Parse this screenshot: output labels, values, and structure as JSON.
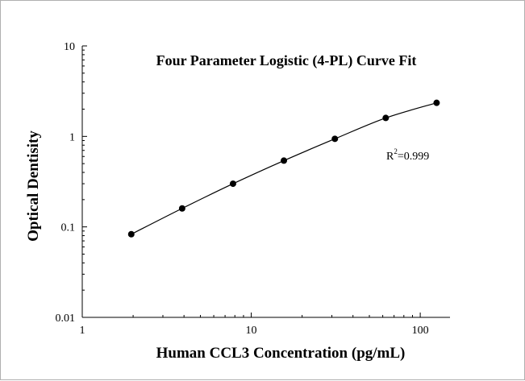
{
  "chart_data": {
    "type": "scatter",
    "title": "Four Parameter Logistic (4-PL) Curve Fit",
    "xlabel": "Human CCL3 Concentration (pg/mL)",
    "ylabel": "Optical Dentisity",
    "x_scale": "log",
    "y_scale": "log",
    "xlim": [
      1,
      150
    ],
    "ylim": [
      0.01,
      10
    ],
    "x_ticks": [
      {
        "value": 1,
        "label": "1"
      },
      {
        "value": 10,
        "label": "10"
      },
      {
        "value": 100,
        "label": "100"
      }
    ],
    "y_ticks": [
      {
        "value": 0.01,
        "label": "0.01"
      },
      {
        "value": 0.1,
        "label": "0.1"
      },
      {
        "value": 1,
        "label": "1"
      },
      {
        "value": 10,
        "label": "10"
      }
    ],
    "series": [
      {
        "points": [
          {
            "x": 1.95,
            "y": 0.083
          },
          {
            "x": 3.9,
            "y": 0.16
          },
          {
            "x": 7.8,
            "y": 0.3
          },
          {
            "x": 15.6,
            "y": 0.54
          },
          {
            "x": 31.25,
            "y": 0.94
          },
          {
            "x": 62.5,
            "y": 1.6
          },
          {
            "x": 125,
            "y": 2.35
          }
        ]
      }
    ],
    "annotation": {
      "base": "R",
      "superscript": "2",
      "rest": "=0.999"
    },
    "grid": false,
    "marker_color": "#000000",
    "line_color": "#000000"
  }
}
